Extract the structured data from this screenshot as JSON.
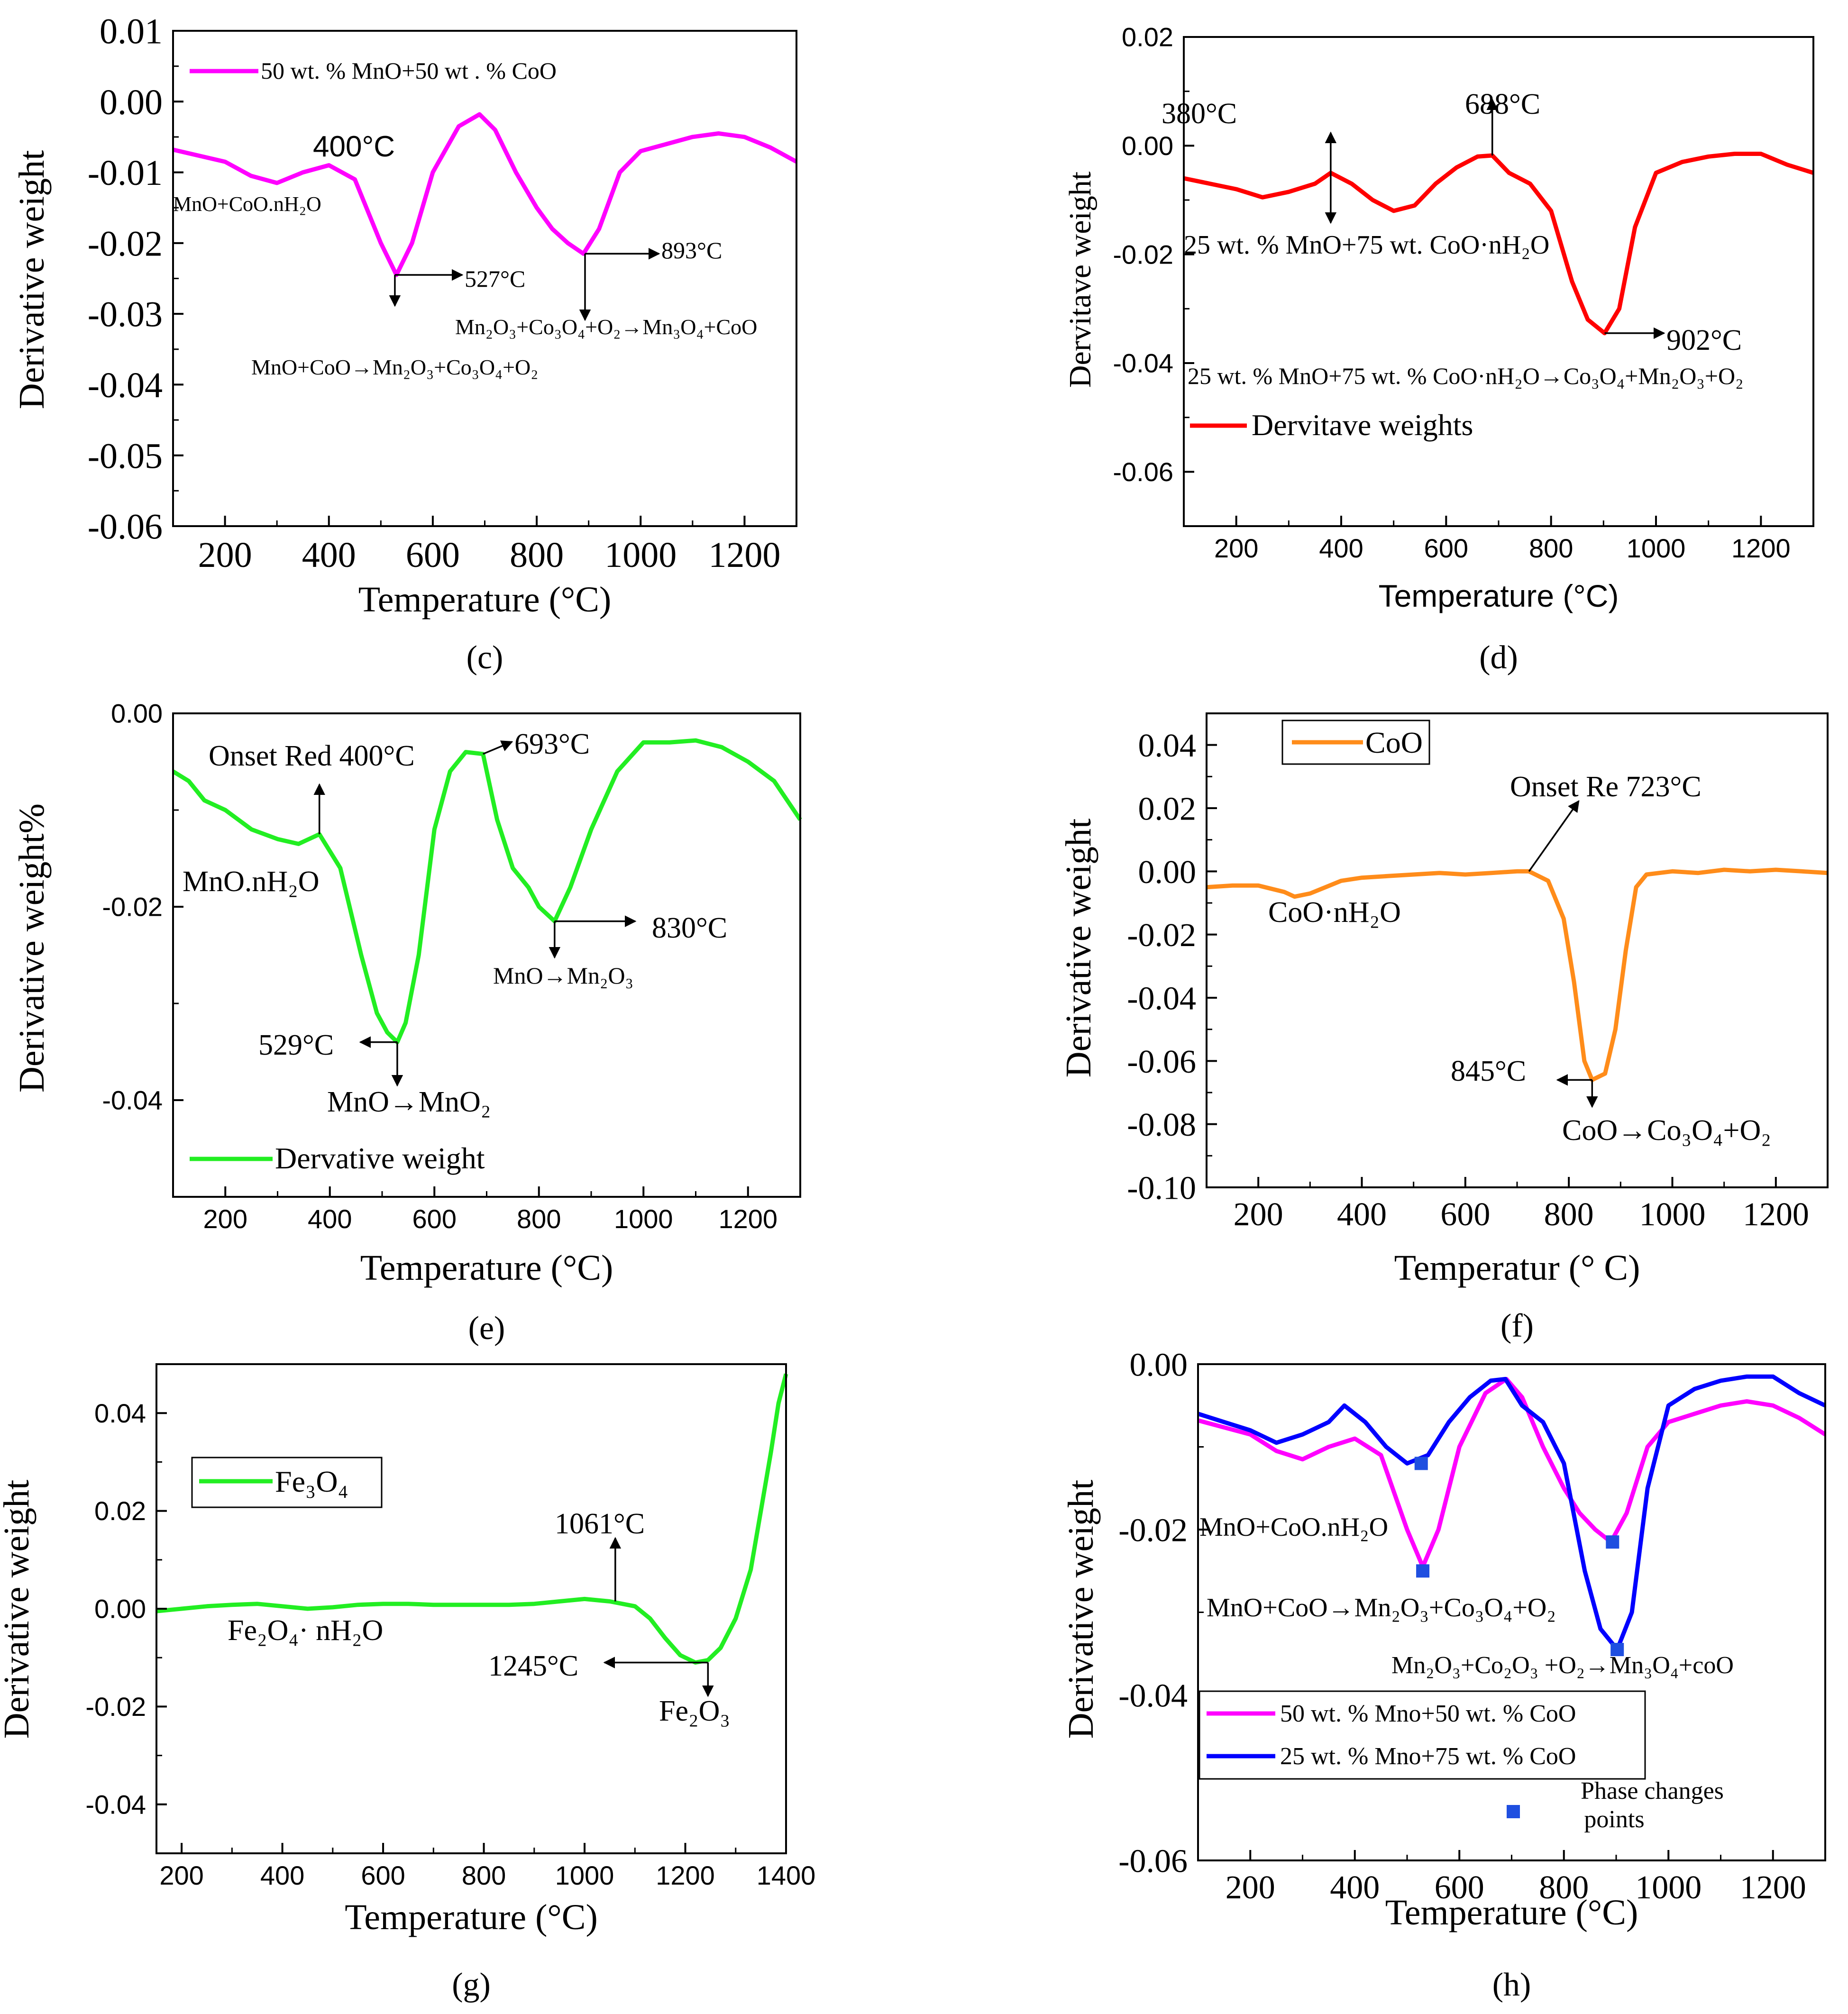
{
  "figure": {
    "panel_count": 6
  },
  "chart_data": [
    {
      "panel": "c",
      "type": "line",
      "xlabel": "Temperature (°C)",
      "ylabel": "Derivative weight",
      "xlim": [
        100,
        1300
      ],
      "ylim": [
        -0.06,
        0.01
      ],
      "xticks": [
        200,
        400,
        600,
        800,
        1000,
        1200
      ],
      "xtick_labels": [
        "200",
        "400",
        "600",
        "800",
        "1000",
        "1200"
      ],
      "yticks": [
        -0.06,
        -0.05,
        -0.04,
        -0.03,
        -0.02,
        -0.01,
        0.0,
        0.01
      ],
      "ytick_labels": [
        "-0.06",
        "-0.05",
        "-0.04",
        "-0.03",
        "-0.02",
        "-0.01",
        "0.00",
        "0.01"
      ],
      "legend": [
        {
          "label": "50 wt. % MnO+50 wt . % CoO",
          "color": "#ff00ff"
        }
      ],
      "series": [
        {
          "name": "50 wt. % MnO+50 wt . % CoO",
          "color": "#ff00ff",
          "x": [
            100,
            200,
            250,
            300,
            350,
            400,
            450,
            500,
            530,
            560,
            600,
            650,
            690,
            720,
            760,
            800,
            830,
            860,
            890,
            920,
            960,
            1000,
            1050,
            1100,
            1150,
            1200,
            1250,
            1300
          ],
          "y": [
            -0.0068,
            -0.0085,
            -0.0105,
            -0.0115,
            -0.01,
            -0.009,
            -0.011,
            -0.02,
            -0.0245,
            -0.02,
            -0.01,
            -0.0035,
            -0.0018,
            -0.004,
            -0.01,
            -0.015,
            -0.018,
            -0.02,
            -0.0215,
            -0.018,
            -0.01,
            -0.007,
            -0.006,
            -0.005,
            -0.0045,
            -0.005,
            -0.0065,
            -0.0085
          ]
        }
      ],
      "annotations": {
        "a1": "400°C",
        "a2": "MnO+CoO.nH₂O",
        "a3": "527°C",
        "a4": "MnO+CoO→Mn₂O₃+Co₃O₄+O₂",
        "a5": "893°C",
        "a6": "Mn₂O₃+Co₃O₄+O₂→Mn₃O₄+CoO"
      },
      "caption": "(c)"
    },
    {
      "panel": "d",
      "type": "line",
      "xlabel": "Temperature (°C)",
      "ylabel": "Dervitave weight",
      "xlim": [
        100,
        1300
      ],
      "ylim": [
        -0.07,
        0.02
      ],
      "xticks": [
        200,
        400,
        600,
        800,
        1000,
        1200
      ],
      "xtick_labels": [
        "200",
        "400",
        "600",
        "800",
        "1000",
        "1200"
      ],
      "yticks": [
        -0.06,
        -0.04,
        -0.02,
        0.0,
        0.02
      ],
      "ytick_labels": [
        "-0.06",
        "-0.04",
        "-0.02",
        "0.00",
        "0.02"
      ],
      "legend": [
        {
          "label": "Dervitave weights",
          "color": "#ff0000"
        }
      ],
      "series": [
        {
          "name": "Dervitave weights",
          "color": "#ff0000",
          "x": [
            100,
            150,
            200,
            250,
            300,
            350,
            380,
            420,
            460,
            500,
            540,
            580,
            620,
            660,
            688,
            720,
            760,
            800,
            840,
            870,
            902,
            930,
            960,
            1000,
            1050,
            1100,
            1150,
            1200,
            1250,
            1300
          ],
          "y": [
            -0.006,
            -0.007,
            -0.008,
            -0.0095,
            -0.0085,
            -0.007,
            -0.005,
            -0.007,
            -0.01,
            -0.012,
            -0.011,
            -0.007,
            -0.004,
            -0.002,
            -0.0018,
            -0.005,
            -0.007,
            -0.012,
            -0.025,
            -0.032,
            -0.0345,
            -0.03,
            -0.015,
            -0.005,
            -0.003,
            -0.002,
            -0.0015,
            -0.0015,
            -0.0035,
            -0.005
          ]
        }
      ],
      "annotations": {
        "a1": "380°C",
        "a2": "688°C",
        "a3": "25 wt. % MnO+75 wt. CoO·nH₂O",
        "a4": "902°C",
        "a5": "25 wt. % MnO+75 wt. % CoO·nH₂O→Co₃O₄+Mn₂O₃+O₂"
      },
      "caption": "(d)"
    },
    {
      "panel": "e",
      "type": "line",
      "xlabel": "Temperature (°C)",
      "ylabel": "Derivative weight%",
      "xlim": [
        100,
        1300
      ],
      "ylim": [
        -0.05,
        0.0
      ],
      "xticks": [
        200,
        400,
        600,
        800,
        1000,
        1200
      ],
      "xtick_labels": [
        "200",
        "400",
        "600",
        "800",
        "1000",
        "1200"
      ],
      "yticks": [
        -0.04,
        -0.02,
        0.0
      ],
      "ytick_labels": [
        "-0.04",
        "-0.02",
        "0.00"
      ],
      "legend": [
        {
          "label": "Dervative weight",
          "color": "#22ee22"
        }
      ],
      "series": [
        {
          "name": "Dervative weight",
          "color": "#22ee22",
          "x": [
            100,
            130,
            160,
            200,
            250,
            300,
            340,
            380,
            420,
            460,
            490,
            510,
            529,
            545,
            570,
            600,
            630,
            660,
            693,
            720,
            750,
            780,
            800,
            830,
            860,
            900,
            950,
            1000,
            1050,
            1100,
            1150,
            1200,
            1250,
            1300
          ],
          "y": [
            -0.006,
            -0.007,
            -0.009,
            -0.01,
            -0.012,
            -0.013,
            -0.0135,
            -0.0125,
            -0.016,
            -0.025,
            -0.031,
            -0.033,
            -0.034,
            -0.032,
            -0.025,
            -0.012,
            -0.006,
            -0.004,
            -0.0042,
            -0.011,
            -0.016,
            -0.018,
            -0.02,
            -0.0215,
            -0.018,
            -0.012,
            -0.006,
            -0.003,
            -0.003,
            -0.0028,
            -0.0035,
            -0.005,
            -0.007,
            -0.011
          ]
        }
      ],
      "annotations": {
        "a1": "Onset Red 400°C",
        "a2": "693°C",
        "a3": "MnO.nH₂O",
        "a4": "830°C",
        "a5": "MnO→Mn₂O₃",
        "a6": "529°C",
        "a7": "MnO→MnO₂"
      },
      "caption": "(e)"
    },
    {
      "panel": "f",
      "type": "line",
      "xlabel": "Temperatur (° C)",
      "ylabel": "Derivative weight",
      "xlim": [
        100,
        1300
      ],
      "ylim": [
        -0.1,
        0.05
      ],
      "xticks": [
        200,
        400,
        600,
        800,
        1000,
        1200
      ],
      "xtick_labels": [
        "200",
        "400",
        "600",
        "800",
        "1000",
        "1200"
      ],
      "yticks": [
        -0.1,
        -0.08,
        -0.06,
        -0.04,
        -0.02,
        0.0,
        0.02,
        0.04
      ],
      "ytick_labels": [
        "-0.10",
        "-0.08",
        "-0.06",
        "-0.04",
        "-0.02",
        "0.00",
        "0.02",
        "0.04"
      ],
      "legend": [
        {
          "label": "CoO",
          "color": "#ff8c1a"
        }
      ],
      "series": [
        {
          "name": "CoO",
          "color": "#ff8c1a",
          "x": [
            100,
            150,
            200,
            250,
            270,
            300,
            330,
            360,
            400,
            450,
            500,
            550,
            600,
            650,
            700,
            723,
            760,
            790,
            810,
            830,
            845,
            870,
            890,
            910,
            930,
            950,
            1000,
            1050,
            1100,
            1150,
            1200,
            1250,
            1300
          ],
          "y": [
            -0.005,
            -0.0045,
            -0.0045,
            -0.0065,
            -0.008,
            -0.007,
            -0.005,
            -0.003,
            -0.002,
            -0.0015,
            -0.001,
            -0.0005,
            -0.001,
            -0.0005,
            0.0,
            0.0,
            -0.003,
            -0.015,
            -0.035,
            -0.06,
            -0.066,
            -0.064,
            -0.05,
            -0.025,
            -0.005,
            -0.001,
            0.0,
            -0.0005,
            0.0005,
            0.0,
            0.0005,
            0.0,
            -0.0005
          ]
        }
      ],
      "annotations": {
        "a1": "Onset Re 723°C",
        "a2": "CoO·nH₂O",
        "a3": "845°C",
        "a4": "CoO→Co₃O₄+O₂"
      },
      "caption": "(f)"
    },
    {
      "panel": "g",
      "type": "line",
      "xlabel": "Temperature (°C)",
      "ylabel": "Derivative weight",
      "xlim": [
        150,
        1400
      ],
      "ylim": [
        -0.05,
        0.05
      ],
      "xticks": [
        200,
        400,
        600,
        800,
        1000,
        1200,
        1400
      ],
      "xtick_labels": [
        "200",
        "400",
        "600",
        "800",
        "1000",
        "1200",
        "1400"
      ],
      "yticks": [
        -0.04,
        -0.02,
        0.0,
        0.02,
        0.04
      ],
      "ytick_labels": [
        "-0.04",
        "-0.02",
        "0.00",
        "0.02",
        "0.04"
      ],
      "legend": [
        {
          "label": "Fe₃O₄",
          "color": "#22ee22"
        }
      ],
      "series": [
        {
          "name": "Fe₃O₄",
          "color": "#22ee22",
          "x": [
            150,
            200,
            250,
            300,
            350,
            400,
            450,
            500,
            550,
            600,
            650,
            700,
            750,
            800,
            850,
            900,
            950,
            1000,
            1050,
            1100,
            1130,
            1160,
            1190,
            1220,
            1245,
            1270,
            1300,
            1330,
            1350,
            1370,
            1385,
            1400
          ],
          "y": [
            -0.0005,
            0.0,
            0.0005,
            0.0008,
            0.001,
            0.0005,
            0.0,
            0.0003,
            0.0008,
            0.001,
            0.001,
            0.0008,
            0.0008,
            0.0008,
            0.0008,
            0.001,
            0.0015,
            0.002,
            0.0015,
            0.0005,
            -0.002,
            -0.006,
            -0.0095,
            -0.011,
            -0.0105,
            -0.008,
            -0.002,
            0.008,
            0.02,
            0.032,
            0.042,
            0.048
          ]
        }
      ],
      "annotations": {
        "a1": "1061°C",
        "a2": "Fe₂O₄· nH₂O",
        "a3": "1245°C",
        "a4": "Fe₂O₃"
      },
      "caption": "(g)"
    },
    {
      "panel": "h",
      "type": "line",
      "xlabel": "Temperature (°C)",
      "ylabel": "Derivative weight",
      "xlim": [
        100,
        1300
      ],
      "ylim": [
        -0.06,
        0.0
      ],
      "xticks": [
        200,
        400,
        600,
        800,
        1000,
        1200
      ],
      "xtick_labels": [
        "200",
        "400",
        "600",
        "800",
        "1000",
        "1200"
      ],
      "yticks": [
        -0.06,
        -0.04,
        -0.02,
        0.0
      ],
      "ytick_labels": [
        "-0.06",
        "-0.04",
        "-0.02",
        "0.00"
      ],
      "legend": [
        {
          "label": "50 wt. % Mno+50 wt. % CoO",
          "color": "#ff00ff"
        },
        {
          "label": "25 wt. % Mno+75 wt. % CoO",
          "color": "#0000ff"
        },
        {
          "label": "Phase changes points",
          "color": "#1f4fe0"
        }
      ],
      "series": [
        {
          "name": "50 wt. % Mno+50 wt. % CoO",
          "color": "#ff00ff",
          "x": [
            100,
            200,
            250,
            300,
            350,
            400,
            450,
            500,
            530,
            560,
            600,
            650,
            690,
            720,
            760,
            800,
            830,
            860,
            890,
            920,
            960,
            1000,
            1050,
            1100,
            1150,
            1200,
            1250,
            1300
          ],
          "y": [
            -0.0068,
            -0.0085,
            -0.0105,
            -0.0115,
            -0.01,
            -0.009,
            -0.011,
            -0.02,
            -0.0245,
            -0.02,
            -0.01,
            -0.0035,
            -0.0018,
            -0.004,
            -0.01,
            -0.015,
            -0.018,
            -0.02,
            -0.0215,
            -0.018,
            -0.01,
            -0.007,
            -0.006,
            -0.005,
            -0.0045,
            -0.005,
            -0.0065,
            -0.0085
          ]
        },
        {
          "name": "25 wt. % Mno+75 wt. % CoO",
          "color": "#0000ff",
          "x": [
            100,
            150,
            200,
            250,
            300,
            350,
            380,
            420,
            460,
            500,
            540,
            580,
            620,
            660,
            688,
            720,
            760,
            800,
            840,
            870,
            902,
            930,
            960,
            1000,
            1050,
            1100,
            1150,
            1200,
            1250,
            1300
          ],
          "y": [
            -0.006,
            -0.007,
            -0.008,
            -0.0095,
            -0.0085,
            -0.007,
            -0.005,
            -0.007,
            -0.01,
            -0.012,
            -0.011,
            -0.007,
            -0.004,
            -0.002,
            -0.0018,
            -0.005,
            -0.007,
            -0.012,
            -0.025,
            -0.032,
            -0.0345,
            -0.03,
            -0.015,
            -0.005,
            -0.003,
            -0.002,
            -0.0015,
            -0.0015,
            -0.0035,
            -0.005
          ]
        }
      ],
      "points": {
        "name": "Phase changes points",
        "x": [
          527,
          530,
          893,
          902
        ],
        "y": [
          -0.012,
          -0.025,
          -0.0215,
          -0.0345
        ]
      },
      "annotations": {
        "a1": "MnO+CoO.nH₂O",
        "a2": "MnO+CoO→Mn₂O₃+Co₃O₄+O₂",
        "a3": "Mn₂O₃+Co₂O₃ +O₂→Mn₃O₄+coO"
      },
      "caption": "(h)"
    }
  ]
}
